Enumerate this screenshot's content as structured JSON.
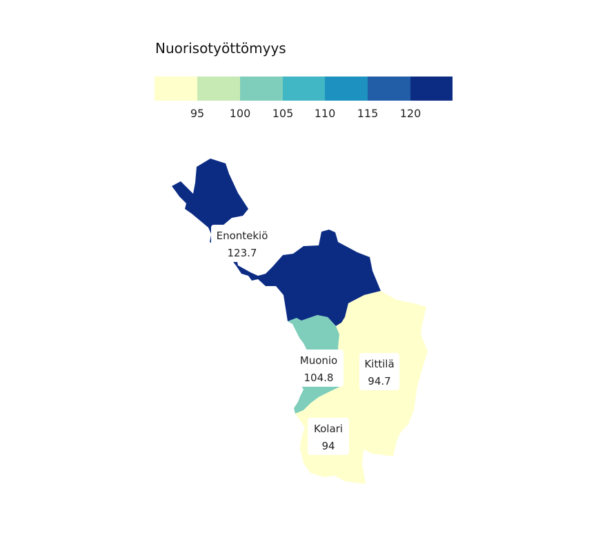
{
  "legend": {
    "title": "Nuorisotyöttömyys",
    "colors": [
      "#ffffcc",
      "#c7e9b4",
      "#7fcdbb",
      "#41b6c4",
      "#1d91c0",
      "#225ea8",
      "#0c2c84"
    ],
    "ticks": [
      "95",
      "100",
      "105",
      "110",
      "115",
      "120"
    ]
  },
  "regions": [
    {
      "name": "Enontekiö",
      "value_text": "123.7",
      "color": "#0c2c84"
    },
    {
      "name": "Muonio",
      "value_text": "104.8",
      "color": "#7fcdbb"
    },
    {
      "name": "Kittilä",
      "value_text": "94.7",
      "color": "#ffffcc"
    },
    {
      "name": "Kolari",
      "value_text": "94",
      "color": "#ffffcc"
    }
  ]
}
